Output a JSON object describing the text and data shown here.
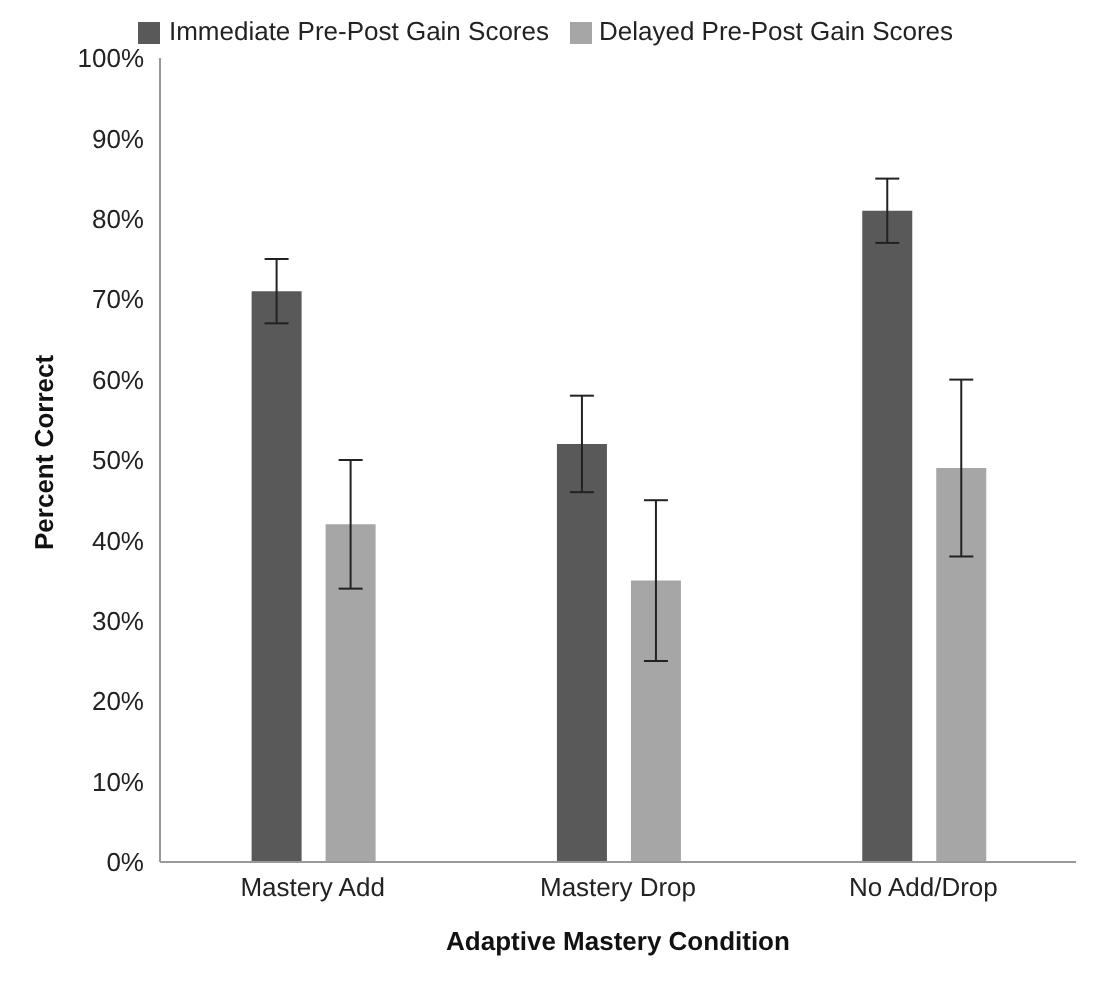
{
  "chart_data": {
    "type": "bar",
    "xlabel": "Adaptive Mastery Condition",
    "ylabel": "Percent Correct",
    "categories": [
      "Mastery Add",
      "Mastery Drop",
      "No Add/Drop"
    ],
    "series": [
      {
        "name": "Immediate Pre-Post Gain Scores",
        "color": "#595959",
        "values": [
          71,
          52,
          81
        ],
        "errors": [
          [
            67,
            75
          ],
          [
            46,
            58
          ],
          [
            77,
            85
          ]
        ]
      },
      {
        "name": "Delayed Pre-Post Gain Scores",
        "color": "#a6a6a6",
        "values": [
          42,
          35,
          49
        ],
        "errors": [
          [
            34,
            50
          ],
          [
            25,
            45
          ],
          [
            38,
            60
          ]
        ]
      }
    ],
    "ylim": [
      0,
      100
    ],
    "yticks": [
      {
        "value": 0,
        "label": "0%"
      },
      {
        "value": 10,
        "label": "10%"
      },
      {
        "value": 20,
        "label": "20%"
      },
      {
        "value": 30,
        "label": "30%"
      },
      {
        "value": 40,
        "label": "40%"
      },
      {
        "value": 50,
        "label": "50%"
      },
      {
        "value": 60,
        "label": "60%"
      },
      {
        "value": 70,
        "label": "70%"
      },
      {
        "value": 80,
        "label": "80%"
      },
      {
        "value": 90,
        "label": "90%"
      },
      {
        "value": 100,
        "label": "100%"
      }
    ],
    "grid": false,
    "legend": "top"
  }
}
